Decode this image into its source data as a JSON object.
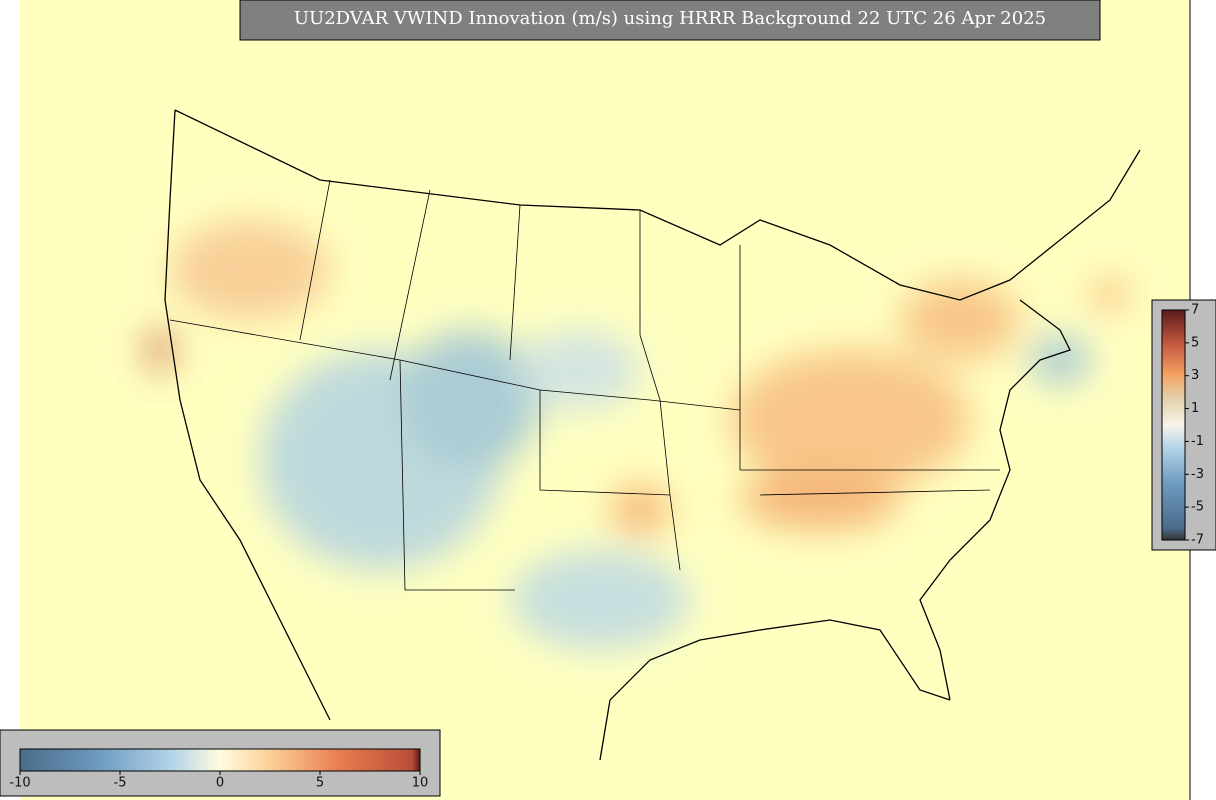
{
  "title": "UU2DVAR VWIND Innovation (m/s) using HRRR Background 22 UTC 26 Apr 2025",
  "colorbar_bottom": {
    "range": [
      -10,
      10
    ],
    "ticks": [
      -10,
      -5,
      0,
      5,
      10
    ]
  },
  "colorbar_right": {
    "range": [
      -7,
      7
    ],
    "ticks": [
      7,
      5,
      3,
      1,
      -1,
      -3,
      -5,
      -7
    ]
  }
}
